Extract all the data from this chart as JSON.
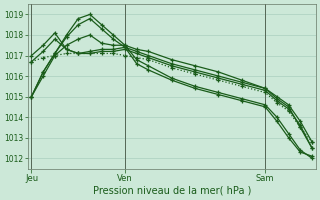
{
  "title": "Pression niveau de la mer( hPa )",
  "bg_color": "#cce8d8",
  "grid_color": "#aacfbf",
  "line_color": "#1a5c1a",
  "ylim": [
    1011.5,
    1019.5
  ],
  "yticks": [
    1012,
    1013,
    1014,
    1015,
    1016,
    1017,
    1018,
    1019
  ],
  "xlim": [
    -1,
    73
  ],
  "xtick_positions": [
    0,
    24,
    60
  ],
  "xtick_labels": [
    "Jeu",
    "Ven",
    "Sam"
  ],
  "vlines": [
    0,
    24,
    60
  ],
  "series": [
    {
      "x": [
        0,
        3,
        6,
        9,
        12,
        15,
        18,
        21,
        24,
        27,
        30,
        36,
        42,
        48,
        54,
        60,
        63,
        66,
        69,
        72
      ],
      "y": [
        1015.0,
        1016.2,
        1017.1,
        1018.0,
        1018.8,
        1019.0,
        1018.5,
        1018.0,
        1017.5,
        1016.8,
        1016.5,
        1015.9,
        1015.5,
        1015.2,
        1014.9,
        1014.6,
        1014.0,
        1013.2,
        1012.4,
        1012.0
      ],
      "linestyle": "-"
    },
    {
      "x": [
        0,
        3,
        6,
        9,
        12,
        15,
        18,
        21,
        24,
        27,
        30,
        36,
        42,
        48,
        54,
        60,
        63,
        66,
        69,
        72
      ],
      "y": [
        1015.0,
        1016.2,
        1017.1,
        1017.9,
        1018.5,
        1018.8,
        1018.3,
        1017.8,
        1017.4,
        1016.6,
        1016.3,
        1015.8,
        1015.4,
        1015.1,
        1014.8,
        1014.5,
        1013.8,
        1013.0,
        1012.3,
        1012.1
      ],
      "linestyle": "-"
    },
    {
      "x": [
        0,
        3,
        6,
        9,
        12,
        15,
        18,
        21,
        24,
        27,
        30,
        36,
        42,
        48,
        54,
        60,
        63,
        66,
        69,
        72
      ],
      "y": [
        1015.0,
        1016.0,
        1017.0,
        1017.5,
        1017.8,
        1018.0,
        1017.6,
        1017.5,
        1017.5,
        1017.3,
        1017.2,
        1016.8,
        1016.5,
        1016.2,
        1015.8,
        1015.4,
        1014.9,
        1014.5,
        1013.5,
        1012.5
      ],
      "linestyle": "-"
    },
    {
      "x": [
        0,
        3,
        6,
        9,
        12,
        15,
        18,
        21,
        24,
        27,
        30,
        36,
        42,
        48,
        54,
        60,
        63,
        66,
        69,
        72
      ],
      "y": [
        1016.7,
        1017.2,
        1017.8,
        1017.3,
        1017.1,
        1017.2,
        1017.3,
        1017.3,
        1017.4,
        1017.2,
        1017.0,
        1016.6,
        1016.3,
        1016.0,
        1015.7,
        1015.4,
        1015.0,
        1014.6,
        1013.8,
        1012.8
      ],
      "linestyle": "-"
    },
    {
      "x": [
        0,
        3,
        6,
        9,
        12,
        15,
        18,
        21,
        24,
        27,
        30,
        36,
        42,
        48,
        54,
        60,
        63,
        66,
        69,
        72
      ],
      "y": [
        1017.0,
        1017.5,
        1018.1,
        1017.3,
        1017.1,
        1017.1,
        1017.2,
        1017.2,
        1017.3,
        1017.1,
        1016.9,
        1016.5,
        1016.2,
        1015.9,
        1015.6,
        1015.3,
        1014.8,
        1014.4,
        1013.6,
        1012.5
      ],
      "linestyle": "-"
    },
    {
      "x": [
        0,
        3,
        6,
        9,
        12,
        15,
        18,
        21,
        24,
        27,
        30,
        36,
        42,
        48,
        54,
        60,
        63,
        66,
        69,
        72
      ],
      "y": [
        1016.7,
        1016.9,
        1017.0,
        1017.1,
        1017.1,
        1017.1,
        1017.1,
        1017.1,
        1017.0,
        1016.9,
        1016.8,
        1016.4,
        1016.1,
        1015.8,
        1015.5,
        1015.2,
        1014.7,
        1014.3,
        1013.5,
        1012.8
      ],
      "linestyle": ":"
    }
  ],
  "ytick_fontsize": 5.5,
  "xtick_fontsize": 6.0,
  "xlabel_fontsize": 7.0,
  "marker": "+",
  "markersize": 3,
  "linewidth": 0.9,
  "markeredgewidth": 0.9,
  "vline_color": "#556655",
  "vline_lw": 0.7,
  "spine_color": "#667766"
}
